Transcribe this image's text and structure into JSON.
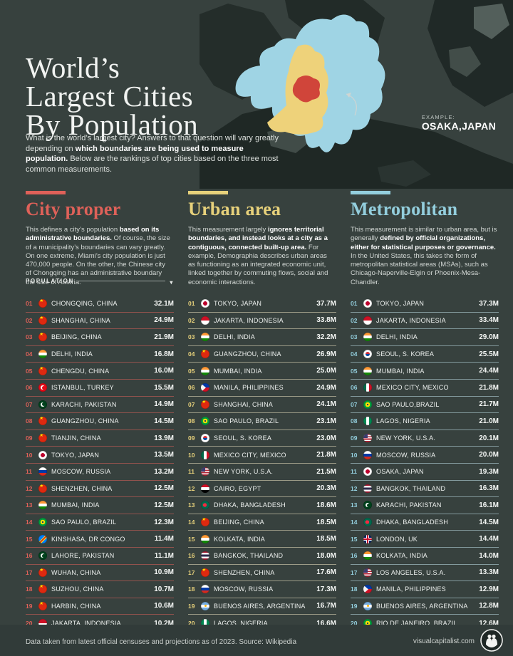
{
  "colors": {
    "background": "#37413e",
    "city_proper": "#df6159",
    "urban_area": "#e7d17b",
    "metropolitan": "#93cedd",
    "map_city_proper": "#d0453a",
    "map_urban": "#eed27a",
    "map_metro": "#9fd4e4"
  },
  "header": {
    "title_lines": [
      "World’s",
      "Largest Cities",
      "By Population"
    ],
    "intro": [
      {
        "t": "What is the world’s largest city? Answers to that question will vary greatly depending on ",
        "b": false
      },
      {
        "t": "which boundaries are being used to measure population.",
        "b": true
      },
      {
        "t": " Below are the rankings of top cities based on the three most common measurements.",
        "b": false
      }
    ]
  },
  "map": {
    "example_label": "EXAMPLE:",
    "example_city": "OSAKA,JAPAN"
  },
  "population_label": "POPULATION",
  "chart_data": {
    "type": "table",
    "value_unit": "millions of people (M)",
    "tables": [
      {
        "title": "City proper",
        "accent": "#df6159",
        "description": [
          {
            "t": "This defines a city’s population ",
            "b": false
          },
          {
            "t": "based on its administrative boundaries.",
            "b": true
          },
          {
            "t": " Of course, the size of a municipality’s boundaries can vary greatly. On one extreme, Miami’s city population is just 470,000 people. On the other, the Chinese city of Chongqing has an administrative boundary the size of Austria.",
            "b": false
          }
        ],
        "rows": [
          {
            "rank": "01",
            "flag": "china",
            "city": "CHONGQING, CHINA",
            "population": "32.1M"
          },
          {
            "rank": "02",
            "flag": "china",
            "city": "SHANGHAI, CHINA",
            "population": "24.9M"
          },
          {
            "rank": "03",
            "flag": "china",
            "city": "BEIJING, CHINA",
            "population": "21.9M"
          },
          {
            "rank": "04",
            "flag": "india",
            "city": "DELHI, INDIA",
            "population": "16.8M"
          },
          {
            "rank": "05",
            "flag": "china",
            "city": "CHENGDU, CHINA",
            "population": "16.0M"
          },
          {
            "rank": "06",
            "flag": "turkey",
            "city": "ISTANBUL, TURKEY",
            "population": "15.5M"
          },
          {
            "rank": "07",
            "flag": "pakistan",
            "city": "KARACHI, PAKISTAN",
            "population": "14.9M"
          },
          {
            "rank": "08",
            "flag": "china",
            "city": "GUANGZHOU, CHINA",
            "population": "14.5M"
          },
          {
            "rank": "09",
            "flag": "china",
            "city": "TIANJIN, CHINA",
            "population": "13.9M"
          },
          {
            "rank": "10",
            "flag": "japan",
            "city": "TOKYO, JAPAN",
            "population": "13.5M"
          },
          {
            "rank": "11",
            "flag": "russia",
            "city": "MOSCOW, RUSSIA",
            "population": "13.2M"
          },
          {
            "rank": "12",
            "flag": "china",
            "city": "SHENZHEN, CHINA",
            "population": "12.5M"
          },
          {
            "rank": "13",
            "flag": "india",
            "city": "MUMBAI, INDIA",
            "population": "12.5M"
          },
          {
            "rank": "14",
            "flag": "brazil",
            "city": "SAO PAULO, BRAZIL",
            "population": "12.3M"
          },
          {
            "rank": "15",
            "flag": "drcongo",
            "city": "KINSHASA, DR CONGO",
            "population": "11.4M"
          },
          {
            "rank": "16",
            "flag": "pakistan",
            "city": "LAHORE, PAKISTAN",
            "population": "11.1M"
          },
          {
            "rank": "17",
            "flag": "china",
            "city": "WUHAN, CHINA",
            "population": "10.9M"
          },
          {
            "rank": "18",
            "flag": "china",
            "city": "SUZHOU, CHINA",
            "population": "10.7M"
          },
          {
            "rank": "19",
            "flag": "china",
            "city": "HARBIN, CHINA",
            "population": "10.6M"
          },
          {
            "rank": "20",
            "flag": "indonesia",
            "city": "JAKARTA, INDONESIA",
            "population": "10.2M"
          }
        ]
      },
      {
        "title": "Urban area",
        "accent": "#e7d17b",
        "description": [
          {
            "t": "This measurement largely ",
            "b": false
          },
          {
            "t": "ignores territorial boundaries, and instead looks at a city as a contiguous, connected built-up area.",
            "b": true
          },
          {
            "t": " For example, Demographia describes urban areas as functioning as an integrated economic unit, linked together by commuting flows, social and economic interactions.",
            "b": false
          }
        ],
        "rows": [
          {
            "rank": "01",
            "flag": "japan",
            "city": "TOKYO, JAPAN",
            "population": "37.7M"
          },
          {
            "rank": "02",
            "flag": "indonesia",
            "city": "JAKARTA, INDONESIA",
            "population": "33.8M"
          },
          {
            "rank": "03",
            "flag": "india",
            "city": "DELHI, INDIA",
            "population": "32.2M"
          },
          {
            "rank": "04",
            "flag": "china",
            "city": "GUANGZHOU, CHINA",
            "population": "26.9M"
          },
          {
            "rank": "05",
            "flag": "india",
            "city": "MUMBAI, INDIA",
            "population": "25.0M"
          },
          {
            "rank": "06",
            "flag": "philippines",
            "city": "MANILA, PHILIPPINES",
            "population": "24.9M"
          },
          {
            "rank": "07",
            "flag": "china",
            "city": "SHANGHAI, CHINA",
            "population": "24.1M"
          },
          {
            "rank": "08",
            "flag": "brazil",
            "city": "SAO PAULO, BRAZIL",
            "population": "23.1M"
          },
          {
            "rank": "09",
            "flag": "skorea",
            "city": "SEOUL, S. KOREA",
            "population": "23.0M"
          },
          {
            "rank": "10",
            "flag": "mexico",
            "city": "MEXICO CITY, MEXICO",
            "population": "21.8M"
          },
          {
            "rank": "11",
            "flag": "usa",
            "city": "NEW YORK, U.S.A.",
            "population": "21.5M"
          },
          {
            "rank": "12",
            "flag": "egypt",
            "city": "CAIRO, EGYPT",
            "population": "20.3M"
          },
          {
            "rank": "13",
            "flag": "bangladesh",
            "city": "DHAKA, BANGLADESH",
            "population": "18.6M"
          },
          {
            "rank": "14",
            "flag": "china",
            "city": "BEIJING, CHINA",
            "population": "18.5M"
          },
          {
            "rank": "15",
            "flag": "india",
            "city": "KOLKATA, INDIA",
            "population": "18.5M"
          },
          {
            "rank": "16",
            "flag": "thailand",
            "city": "BANGKOK, THAILAND",
            "population": "18.0M"
          },
          {
            "rank": "17",
            "flag": "china",
            "city": "SHENZHEN, CHINA",
            "population": "17.6M"
          },
          {
            "rank": "18",
            "flag": "russia",
            "city": "MOSCOW, RUSSIA",
            "population": "17.3M"
          },
          {
            "rank": "19",
            "flag": "argentina",
            "city": "BUENOS AIRES, ARGENTINA",
            "population": "16.7M"
          },
          {
            "rank": "20",
            "flag": "nigeria",
            "city": "LAGOS, NIGERIA",
            "population": "16.6M"
          }
        ]
      },
      {
        "title": "Metropolitan",
        "accent": "#93cedd",
        "description": [
          {
            "t": "This measurement is similar to urban area, but is generally ",
            "b": false
          },
          {
            "t": "defined by official organizations, either for statistical purposes or governance.",
            "b": true
          },
          {
            "t": " In the United States, this takes the form of metropolitan statistical areas (MSAs), such as Chicago-Naperville-Elgin or Phoenix-Mesa-Chandler.",
            "b": false
          }
        ],
        "rows": [
          {
            "rank": "01",
            "flag": "japan",
            "city": "TOKYO, JAPAN",
            "population": "37.3M"
          },
          {
            "rank": "02",
            "flag": "indonesia",
            "city": "JAKARTA, INDONESIA",
            "population": "33.4M"
          },
          {
            "rank": "03",
            "flag": "india",
            "city": "DELHI, INDIA",
            "population": "29.0M"
          },
          {
            "rank": "04",
            "flag": "skorea",
            "city": "SEOUL, S. KOREA",
            "population": "25.5M"
          },
          {
            "rank": "05",
            "flag": "india",
            "city": "MUMBAI, INDIA",
            "population": "24.4M"
          },
          {
            "rank": "06",
            "flag": "mexico",
            "city": "MEXICO CITY, MEXICO",
            "population": "21.8M"
          },
          {
            "rank": "07",
            "flag": "brazil",
            "city": "SAO PAULO,BRAZIL",
            "population": "21.7M"
          },
          {
            "rank": "08",
            "flag": "nigeria",
            "city": "LAGOS, NIGERIA",
            "population": "21.0M"
          },
          {
            "rank": "09",
            "flag": "usa",
            "city": "NEW YORK, U.S.A.",
            "population": "20.1M"
          },
          {
            "rank": "10",
            "flag": "russia",
            "city": "MOSCOW, RUSSIA",
            "population": "20.0M"
          },
          {
            "rank": "11",
            "flag": "japan",
            "city": "OSAKA, JAPAN",
            "population": "19.3M"
          },
          {
            "rank": "12",
            "flag": "thailand",
            "city": "BANGKOK, THAILAND",
            "population": "16.3M"
          },
          {
            "rank": "13",
            "flag": "pakistan",
            "city": "KARACHI, PAKISTAN",
            "population": "16.1M"
          },
          {
            "rank": "14",
            "flag": "bangladesh",
            "city": "DHAKA, BANGLADESH",
            "population": "14.5M"
          },
          {
            "rank": "15",
            "flag": "uk",
            "city": "LONDON, UK",
            "population": "14.4M"
          },
          {
            "rank": "16",
            "flag": "india",
            "city": "KOLKATA, INDIA",
            "population": "14.0M"
          },
          {
            "rank": "17",
            "flag": "usa",
            "city": "LOS ANGELES, U.S.A.",
            "population": "13.3M"
          },
          {
            "rank": "18",
            "flag": "philippines",
            "city": "MANILA, PHILIPPINES",
            "population": "12.9M"
          },
          {
            "rank": "19",
            "flag": "argentina",
            "city": "BUENOS AIRES, ARGENTINA",
            "population": "12.8M"
          },
          {
            "rank": "20",
            "flag": "brazil",
            "city": "RIO DE JANEIRO, BRAZIL",
            "population": "12.6M"
          }
        ]
      }
    ]
  },
  "footer": {
    "source": "Data taken from latest official censuses and projections as of 2023. Source: Wikipedia",
    "site": "visualcapitalist.com"
  }
}
